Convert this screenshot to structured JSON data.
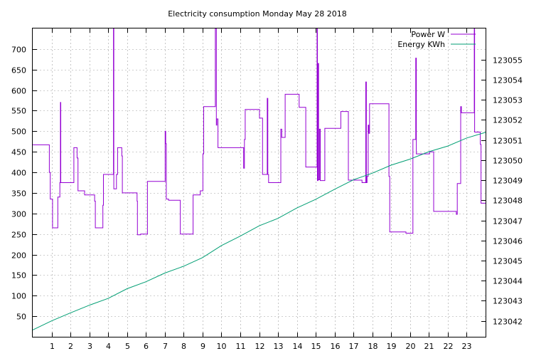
{
  "chart_data": {
    "type": "line",
    "title": "Electricity consumption Monday May 28 2018",
    "xlabel": "",
    "ylabel": "",
    "y2label": "",
    "xlim": [
      0,
      24
    ],
    "ylim": [
      0,
      750
    ],
    "y2lim": [
      123041.21,
      123056.55
    ],
    "grid": true,
    "legend_position": "top-right",
    "xticks": [
      1,
      2,
      3,
      4,
      5,
      6,
      7,
      8,
      9,
      10,
      11,
      12,
      13,
      14,
      15,
      16,
      17,
      18,
      19,
      20,
      21,
      22,
      23
    ],
    "yticks": [
      50,
      100,
      150,
      200,
      250,
      300,
      350,
      400,
      450,
      500,
      550,
      600,
      650,
      700
    ],
    "y2ticks": [
      123042,
      123043,
      123044,
      123045,
      123046,
      123047,
      123048,
      123049,
      123050,
      123051,
      123052,
      123053,
      123054,
      123055
    ],
    "series": [
      {
        "name": "Power W",
        "axis": "y1",
        "color": "#9400d3",
        "step": true,
        "points": [
          [
            0.0,
            467
          ],
          [
            0.85,
            467
          ],
          [
            0.88,
            400
          ],
          [
            0.93,
            335
          ],
          [
            1.05,
            265
          ],
          [
            1.3,
            265
          ],
          [
            1.33,
            340
          ],
          [
            1.42,
            340
          ],
          [
            1.44,
            375
          ],
          [
            1.47,
            570
          ],
          [
            1.49,
            375
          ],
          [
            1.7,
            375
          ],
          [
            2.15,
            375
          ],
          [
            2.18,
            460
          ],
          [
            2.32,
            460
          ],
          [
            2.35,
            435
          ],
          [
            2.4,
            355
          ],
          [
            2.7,
            355
          ],
          [
            2.75,
            345
          ],
          [
            3.25,
            345
          ],
          [
            3.28,
            330
          ],
          [
            3.32,
            265
          ],
          [
            3.7,
            265
          ],
          [
            3.72,
            320
          ],
          [
            3.75,
            395
          ],
          [
            4.25,
            395
          ],
          [
            4.28,
            750
          ],
          [
            4.3,
            360
          ],
          [
            4.42,
            360
          ],
          [
            4.44,
            395
          ],
          [
            4.5,
            460
          ],
          [
            4.68,
            460
          ],
          [
            4.72,
            440
          ],
          [
            4.75,
            350
          ],
          [
            5.5,
            350
          ],
          [
            5.53,
            330
          ],
          [
            5.55,
            248
          ],
          [
            5.7,
            248
          ],
          [
            5.72,
            250
          ],
          [
            6.05,
            250
          ],
          [
            6.08,
            378
          ],
          [
            7.0,
            378
          ],
          [
            7.02,
            500
          ],
          [
            7.05,
            470
          ],
          [
            7.08,
            335
          ],
          [
            7.2,
            332
          ],
          [
            7.8,
            332
          ],
          [
            7.82,
            250
          ],
          [
            8.45,
            250
          ],
          [
            8.5,
            345
          ],
          [
            8.85,
            345
          ],
          [
            8.88,
            355
          ],
          [
            9.0,
            355
          ],
          [
            9.02,
            445
          ],
          [
            9.06,
            560
          ],
          [
            9.65,
            560
          ],
          [
            9.68,
            750
          ],
          [
            9.73,
            515
          ],
          [
            9.76,
            530
          ],
          [
            9.8,
            530
          ],
          [
            9.82,
            460
          ],
          [
            10.2,
            460
          ],
          [
            11.15,
            460
          ],
          [
            11.18,
            410
          ],
          [
            11.22,
            480
          ],
          [
            11.26,
            553
          ],
          [
            12.0,
            553
          ],
          [
            12.02,
            532
          ],
          [
            12.15,
            532
          ],
          [
            12.18,
            395
          ],
          [
            12.4,
            395
          ],
          [
            12.43,
            580
          ],
          [
            12.46,
            395
          ],
          [
            12.5,
            375
          ],
          [
            12.9,
            375
          ],
          [
            13.12,
            375
          ],
          [
            13.15,
            505
          ],
          [
            13.2,
            485
          ],
          [
            13.35,
            485
          ],
          [
            13.38,
            590
          ],
          [
            14.1,
            590
          ],
          [
            14.12,
            558
          ],
          [
            14.45,
            558
          ],
          [
            14.47,
            413
          ],
          [
            15.05,
            413
          ],
          [
            15.07,
            750
          ],
          [
            15.09,
            380
          ],
          [
            15.12,
            665
          ],
          [
            15.15,
            382
          ],
          [
            15.2,
            505
          ],
          [
            15.24,
            380
          ],
          [
            15.45,
            380
          ],
          [
            15.48,
            507
          ],
          [
            16.3,
            507
          ],
          [
            16.33,
            548
          ],
          [
            16.7,
            548
          ],
          [
            16.73,
            381
          ],
          [
            17.4,
            381
          ],
          [
            17.45,
            375
          ],
          [
            17.6,
            375
          ],
          [
            17.65,
            620
          ],
          [
            17.68,
            375
          ],
          [
            17.72,
            390
          ],
          [
            17.78,
            515
          ],
          [
            17.81,
            495
          ],
          [
            17.85,
            567
          ],
          [
            18.85,
            567
          ],
          [
            18.88,
            390
          ],
          [
            18.92,
            255
          ],
          [
            19.3,
            255
          ],
          [
            19.75,
            255
          ],
          [
            19.78,
            252
          ],
          [
            20.1,
            252
          ],
          [
            20.15,
            480
          ],
          [
            20.25,
            480
          ],
          [
            20.3,
            678
          ],
          [
            20.33,
            445
          ],
          [
            20.6,
            445
          ],
          [
            21.0,
            445
          ],
          [
            21.03,
            450
          ],
          [
            21.2,
            450
          ],
          [
            21.25,
            305
          ],
          [
            22.4,
            305
          ],
          [
            22.45,
            298
          ],
          [
            22.5,
            373
          ],
          [
            22.65,
            373
          ],
          [
            22.68,
            560
          ],
          [
            22.72,
            545
          ],
          [
            23.0,
            545
          ],
          [
            23.38,
            545
          ],
          [
            23.4,
            750
          ],
          [
            23.42,
            498
          ],
          [
            23.7,
            498
          ],
          [
            23.72,
            468
          ],
          [
            23.76,
            325
          ],
          [
            24.0,
            325
          ]
        ]
      },
      {
        "name": "Energy KWh",
        "axis": "y2",
        "color": "#009e73",
        "step": false,
        "points": [
          [
            0.0,
            123041.55
          ],
          [
            1.0,
            123042.0
          ],
          [
            2.0,
            123042.4
          ],
          [
            3.0,
            123042.78
          ],
          [
            4.0,
            123043.12
          ],
          [
            5.0,
            123043.6
          ],
          [
            6.0,
            123043.95
          ],
          [
            7.0,
            123044.38
          ],
          [
            8.0,
            123044.72
          ],
          [
            9.0,
            123045.15
          ],
          [
            10.0,
            123045.75
          ],
          [
            11.0,
            123046.22
          ],
          [
            12.0,
            123046.73
          ],
          [
            13.0,
            123047.1
          ],
          [
            14.0,
            123047.62
          ],
          [
            15.0,
            123048.05
          ],
          [
            16.0,
            123048.55
          ],
          [
            17.0,
            123049.02
          ],
          [
            18.0,
            123049.35
          ],
          [
            19.0,
            123049.75
          ],
          [
            20.0,
            123050.05
          ],
          [
            21.0,
            123050.42
          ],
          [
            22.0,
            123050.7
          ],
          [
            23.0,
            123051.1
          ],
          [
            24.0,
            123051.38
          ]
        ]
      }
    ]
  }
}
